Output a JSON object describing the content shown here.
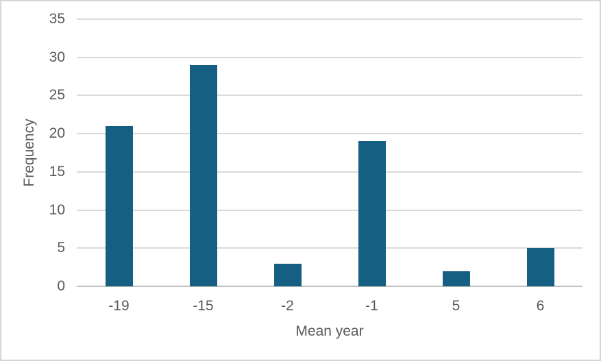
{
  "chart_data": {
    "type": "bar",
    "title": "",
    "categories": [
      "-19",
      "-15",
      "-2",
      "-1",
      "5",
      "6"
    ],
    "values": [
      21,
      29,
      3,
      19,
      2,
      5
    ],
    "xlabel": "Mean year",
    "ylabel": "Frequency",
    "ylim": [
      0,
      35
    ],
    "yticks": [
      0,
      5,
      10,
      15,
      20,
      25,
      30,
      35
    ],
    "grid": true,
    "legend": false,
    "colors": {
      "bar": "#156082",
      "gridline": "#dadada",
      "axis_line": "#bfbfbf",
      "text": "#595959",
      "background": "#ffffff",
      "frame_border": "#d6d6d6"
    }
  }
}
